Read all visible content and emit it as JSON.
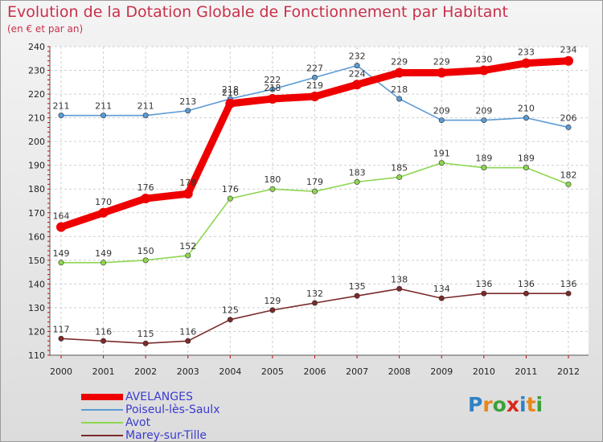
{
  "chart_data": {
    "type": "line",
    "title": "Evolution de la Dotation Globale de Fonctionnement par Habitant",
    "subtitle": "(en € et par an)",
    "xlabel": "",
    "ylabel": "",
    "ylim": [
      110,
      240
    ],
    "yticks": [
      110,
      120,
      130,
      140,
      150,
      160,
      170,
      180,
      190,
      200,
      210,
      220,
      230,
      240
    ],
    "categories": [
      "2000",
      "2001",
      "2002",
      "2003",
      "2004",
      "2005",
      "2006",
      "2007",
      "2008",
      "2009",
      "2010",
      "2011",
      "2012"
    ],
    "grid": true,
    "legend_position": "bottom-left",
    "series": [
      {
        "name": "Poiseul-lès-Saulx",
        "color": "#5b9bd5",
        "values": [
          211,
          211,
          211,
          213,
          218,
          222,
          227,
          232,
          218,
          209,
          209,
          210,
          206
        ]
      },
      {
        "name": "Avot",
        "color": "#8ed651",
        "values": [
          149,
          149,
          150,
          152,
          176,
          180,
          179,
          183,
          185,
          191,
          189,
          189,
          182
        ]
      },
      {
        "name": "Marey-sur-Tille",
        "color": "#7b2a2a",
        "values": [
          117,
          116,
          115,
          116,
          125,
          129,
          132,
          135,
          138,
          134,
          136,
          136,
          136
        ]
      },
      {
        "name": "AVELANGES",
        "color": "#ee0000",
        "values": [
          164,
          170,
          176,
          178,
          216,
          218,
          219,
          224,
          229,
          229,
          230,
          233,
          234
        ]
      }
    ]
  },
  "legend": {
    "items": [
      {
        "label": "AVELANGES",
        "color": "#ee0000"
      },
      {
        "label": "Poiseul-lès-Saulx",
        "color": "#5b9bd5"
      },
      {
        "label": "Avot",
        "color": "#8ed651"
      },
      {
        "label": "Marey-sur-Tille",
        "color": "#7b2a2a"
      }
    ]
  },
  "logo": {
    "letters": [
      "P",
      "r",
      "o",
      "x",
      "i",
      "t",
      "i"
    ],
    "colors": [
      "#2f82c8",
      "#e8861a",
      "#3aa13a",
      "#d9261c",
      "#2f82c8",
      "#e8861a",
      "#3aa13a"
    ]
  }
}
